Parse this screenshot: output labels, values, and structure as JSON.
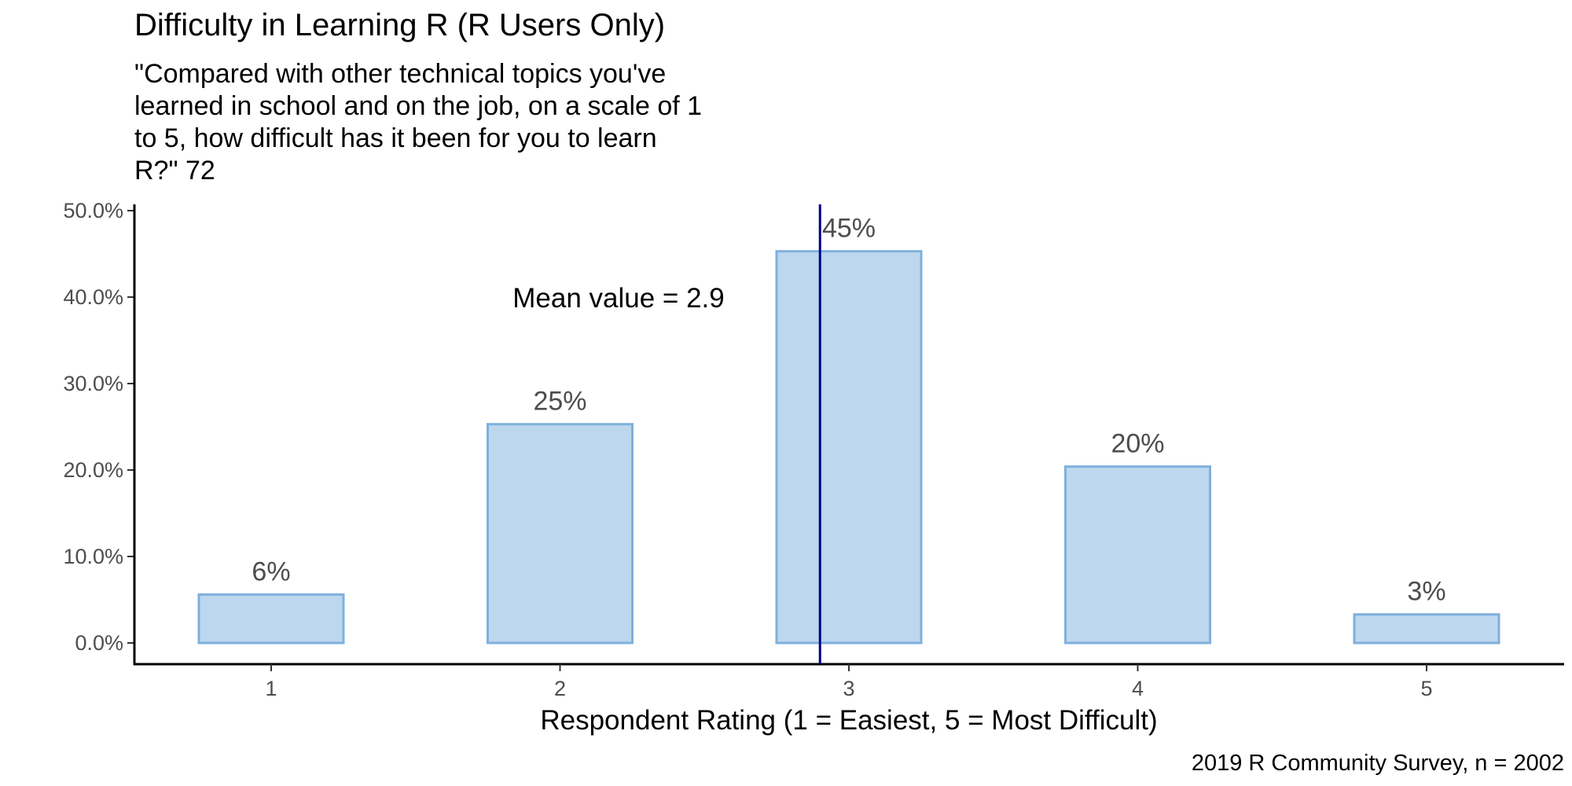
{
  "chart_data": {
    "type": "bar",
    "title": "Difficulty in Learning R (R Users Only)",
    "subtitle_lines": [
      "\"Compared with other technical topics you've",
      "learned in school and on the job, on a scale of 1",
      "to 5, how difficult has it been for you to learn",
      "R?\" 72"
    ],
    "categories": [
      "1",
      "2",
      "3",
      "4",
      "5"
    ],
    "values": [
      5.6,
      25.3,
      45.3,
      20.4,
      3.3
    ],
    "data_labels": [
      "6%",
      "25%",
      "45%",
      "20%",
      "3%"
    ],
    "ylim": [
      0,
      50
    ],
    "yticks": [
      0,
      10,
      20,
      30,
      40,
      50
    ],
    "ytick_labels": [
      "0.0%",
      "10.0%",
      "20.0%",
      "30.0%",
      "40.0%",
      "50.0%"
    ],
    "xlabel": "Respondent Rating (1 = Easiest, 5 = Most Difficult)",
    "ylabel": "",
    "mean_line": {
      "value": 2.9,
      "color": "#00008b"
    },
    "annotation": "Mean value = 2.9",
    "caption": "2019 R Community Survey, n = 2002",
    "bar_fill": "#bdd7ee",
    "bar_stroke": "#7eb0dd",
    "grid": false,
    "legend": "none"
  }
}
